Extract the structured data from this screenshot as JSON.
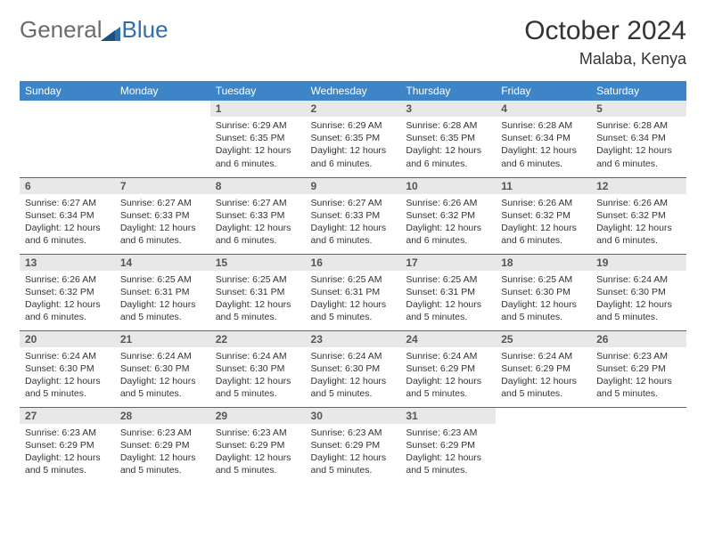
{
  "brand": {
    "part1": "General",
    "part2": "Blue"
  },
  "title": "October 2024",
  "location": "Malaba, Kenya",
  "colors": {
    "header_bg": "#3d85c6",
    "header_text": "#ffffff",
    "row_border": "#2f6fab",
    "daynum_bg": "#e8e8e8",
    "logo_general": "#6b6b6b",
    "logo_blue": "#2f6fab"
  },
  "weekdays": [
    "Sunday",
    "Monday",
    "Tuesday",
    "Wednesday",
    "Thursday",
    "Friday",
    "Saturday"
  ],
  "weeks": [
    [
      {
        "n": "",
        "sr": "",
        "ss": "",
        "dl": ""
      },
      {
        "n": "",
        "sr": "",
        "ss": "",
        "dl": ""
      },
      {
        "n": "1",
        "sr": "Sunrise: 6:29 AM",
        "ss": "Sunset: 6:35 PM",
        "dl": "Daylight: 12 hours and 6 minutes."
      },
      {
        "n": "2",
        "sr": "Sunrise: 6:29 AM",
        "ss": "Sunset: 6:35 PM",
        "dl": "Daylight: 12 hours and 6 minutes."
      },
      {
        "n": "3",
        "sr": "Sunrise: 6:28 AM",
        "ss": "Sunset: 6:35 PM",
        "dl": "Daylight: 12 hours and 6 minutes."
      },
      {
        "n": "4",
        "sr": "Sunrise: 6:28 AM",
        "ss": "Sunset: 6:34 PM",
        "dl": "Daylight: 12 hours and 6 minutes."
      },
      {
        "n": "5",
        "sr": "Sunrise: 6:28 AM",
        "ss": "Sunset: 6:34 PM",
        "dl": "Daylight: 12 hours and 6 minutes."
      }
    ],
    [
      {
        "n": "6",
        "sr": "Sunrise: 6:27 AM",
        "ss": "Sunset: 6:34 PM",
        "dl": "Daylight: 12 hours and 6 minutes."
      },
      {
        "n": "7",
        "sr": "Sunrise: 6:27 AM",
        "ss": "Sunset: 6:33 PM",
        "dl": "Daylight: 12 hours and 6 minutes."
      },
      {
        "n": "8",
        "sr": "Sunrise: 6:27 AM",
        "ss": "Sunset: 6:33 PM",
        "dl": "Daylight: 12 hours and 6 minutes."
      },
      {
        "n": "9",
        "sr": "Sunrise: 6:27 AM",
        "ss": "Sunset: 6:33 PM",
        "dl": "Daylight: 12 hours and 6 minutes."
      },
      {
        "n": "10",
        "sr": "Sunrise: 6:26 AM",
        "ss": "Sunset: 6:32 PM",
        "dl": "Daylight: 12 hours and 6 minutes."
      },
      {
        "n": "11",
        "sr": "Sunrise: 6:26 AM",
        "ss": "Sunset: 6:32 PM",
        "dl": "Daylight: 12 hours and 6 minutes."
      },
      {
        "n": "12",
        "sr": "Sunrise: 6:26 AM",
        "ss": "Sunset: 6:32 PM",
        "dl": "Daylight: 12 hours and 6 minutes."
      }
    ],
    [
      {
        "n": "13",
        "sr": "Sunrise: 6:26 AM",
        "ss": "Sunset: 6:32 PM",
        "dl": "Daylight: 12 hours and 6 minutes."
      },
      {
        "n": "14",
        "sr": "Sunrise: 6:25 AM",
        "ss": "Sunset: 6:31 PM",
        "dl": "Daylight: 12 hours and 5 minutes."
      },
      {
        "n": "15",
        "sr": "Sunrise: 6:25 AM",
        "ss": "Sunset: 6:31 PM",
        "dl": "Daylight: 12 hours and 5 minutes."
      },
      {
        "n": "16",
        "sr": "Sunrise: 6:25 AM",
        "ss": "Sunset: 6:31 PM",
        "dl": "Daylight: 12 hours and 5 minutes."
      },
      {
        "n": "17",
        "sr": "Sunrise: 6:25 AM",
        "ss": "Sunset: 6:31 PM",
        "dl": "Daylight: 12 hours and 5 minutes."
      },
      {
        "n": "18",
        "sr": "Sunrise: 6:25 AM",
        "ss": "Sunset: 6:30 PM",
        "dl": "Daylight: 12 hours and 5 minutes."
      },
      {
        "n": "19",
        "sr": "Sunrise: 6:24 AM",
        "ss": "Sunset: 6:30 PM",
        "dl": "Daylight: 12 hours and 5 minutes."
      }
    ],
    [
      {
        "n": "20",
        "sr": "Sunrise: 6:24 AM",
        "ss": "Sunset: 6:30 PM",
        "dl": "Daylight: 12 hours and 5 minutes."
      },
      {
        "n": "21",
        "sr": "Sunrise: 6:24 AM",
        "ss": "Sunset: 6:30 PM",
        "dl": "Daylight: 12 hours and 5 minutes."
      },
      {
        "n": "22",
        "sr": "Sunrise: 6:24 AM",
        "ss": "Sunset: 6:30 PM",
        "dl": "Daylight: 12 hours and 5 minutes."
      },
      {
        "n": "23",
        "sr": "Sunrise: 6:24 AM",
        "ss": "Sunset: 6:30 PM",
        "dl": "Daylight: 12 hours and 5 minutes."
      },
      {
        "n": "24",
        "sr": "Sunrise: 6:24 AM",
        "ss": "Sunset: 6:29 PM",
        "dl": "Daylight: 12 hours and 5 minutes."
      },
      {
        "n": "25",
        "sr": "Sunrise: 6:24 AM",
        "ss": "Sunset: 6:29 PM",
        "dl": "Daylight: 12 hours and 5 minutes."
      },
      {
        "n": "26",
        "sr": "Sunrise: 6:23 AM",
        "ss": "Sunset: 6:29 PM",
        "dl": "Daylight: 12 hours and 5 minutes."
      }
    ],
    [
      {
        "n": "27",
        "sr": "Sunrise: 6:23 AM",
        "ss": "Sunset: 6:29 PM",
        "dl": "Daylight: 12 hours and 5 minutes."
      },
      {
        "n": "28",
        "sr": "Sunrise: 6:23 AM",
        "ss": "Sunset: 6:29 PM",
        "dl": "Daylight: 12 hours and 5 minutes."
      },
      {
        "n": "29",
        "sr": "Sunrise: 6:23 AM",
        "ss": "Sunset: 6:29 PM",
        "dl": "Daylight: 12 hours and 5 minutes."
      },
      {
        "n": "30",
        "sr": "Sunrise: 6:23 AM",
        "ss": "Sunset: 6:29 PM",
        "dl": "Daylight: 12 hours and 5 minutes."
      },
      {
        "n": "31",
        "sr": "Sunrise: 6:23 AM",
        "ss": "Sunset: 6:29 PM",
        "dl": "Daylight: 12 hours and 5 minutes."
      },
      {
        "n": "",
        "sr": "",
        "ss": "",
        "dl": ""
      },
      {
        "n": "",
        "sr": "",
        "ss": "",
        "dl": ""
      }
    ]
  ]
}
